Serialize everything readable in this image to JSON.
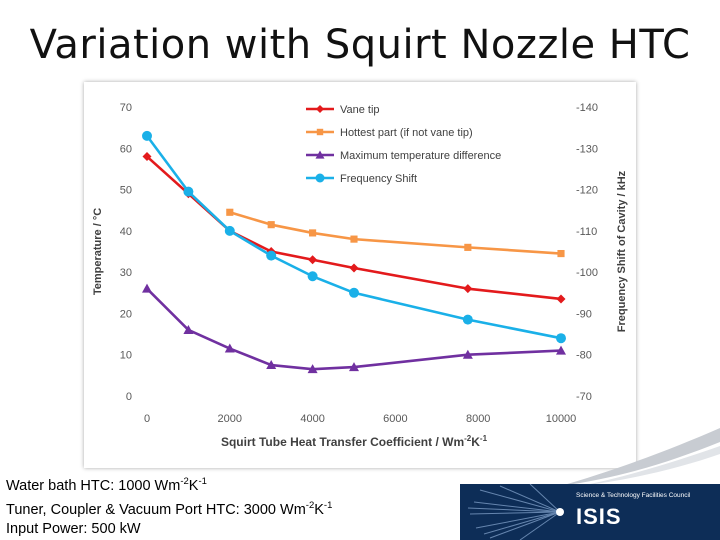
{
  "title": "Variation with Squirt Nozzle HTC",
  "notes": {
    "water_bath": "Water bath HTC: 1000 Wm",
    "water_bath_exp1": "-2",
    "water_bath_mid": "K",
    "water_bath_exp2": "-1",
    "tuner": "Tuner, Coupler & Vacuum Port HTC: 3000 Wm",
    "tuner_exp1": "-2",
    "tuner_mid": "K",
    "tuner_exp2": "-1",
    "power": "Input Power: 500 kW"
  },
  "logo": {
    "council": "Science & Technology Facilities Council",
    "name": "ISIS"
  },
  "chart_data": {
    "type": "line",
    "xlabel": "Squirt Tube Heat Transfer Coefficient / Wm",
    "xlabel_sup": "-2",
    "xlabel_tail": "K",
    "xlabel_sup2": "-1",
    "ylabel_left": "Temperature / °C",
    "ylabel_right": "Frequency Shift of Cavity / kHz",
    "xlim": [
      0,
      10000
    ],
    "ylim_left": [
      0,
      70
    ],
    "ylim_right": [
      -70,
      -140
    ],
    "x_ticks": [
      "0",
      "2000",
      "4000",
      "6000",
      "8000",
      "10000"
    ],
    "y_left_ticks": [
      "0",
      "10",
      "20",
      "30",
      "40",
      "50",
      "60",
      "70"
    ],
    "y_right_ticks": [
      "-70",
      "-80",
      "-90",
      "-100",
      "-110",
      "-120",
      "-130",
      "-140"
    ],
    "grid": false,
    "legend_position": "top-center",
    "series": [
      {
        "name": "Vane tip",
        "axis": "left",
        "color": "#e31a1c",
        "marker": "diamond",
        "points": [
          [
            0,
            58
          ],
          [
            1000,
            49
          ],
          [
            2000,
            40
          ],
          [
            3000,
            35
          ],
          [
            4000,
            33
          ],
          [
            5000,
            31
          ],
          [
            7750,
            26
          ],
          [
            10000,
            23.5
          ]
        ]
      },
      {
        "name": "Hottest part (if not vane tip)",
        "axis": "left",
        "color": "#f79646",
        "marker": "square",
        "points": [
          [
            2000,
            44.5
          ],
          [
            3000,
            41.5
          ],
          [
            4000,
            39.5
          ],
          [
            5000,
            38
          ],
          [
            7750,
            36
          ],
          [
            10000,
            34.5
          ]
        ]
      },
      {
        "name": "Maximum temperature difference",
        "axis": "left",
        "color": "#7030a0",
        "marker": "triangle",
        "points": [
          [
            0,
            26
          ],
          [
            1000,
            16
          ],
          [
            2000,
            11.5
          ],
          [
            3000,
            7.5
          ],
          [
            4000,
            6.5
          ],
          [
            5000,
            7
          ],
          [
            7750,
            10
          ],
          [
            10000,
            11
          ]
        ]
      },
      {
        "name": "Frequency Shift",
        "axis": "right",
        "color": "#1ab0e8",
        "marker": "circle",
        "points": [
          [
            0,
            -133
          ],
          [
            1000,
            -119.5
          ],
          [
            2000,
            -110
          ],
          [
            3000,
            -104
          ],
          [
            4000,
            -99
          ],
          [
            5000,
            -95
          ],
          [
            7750,
            -88.5
          ],
          [
            10000,
            -84
          ]
        ]
      }
    ]
  }
}
